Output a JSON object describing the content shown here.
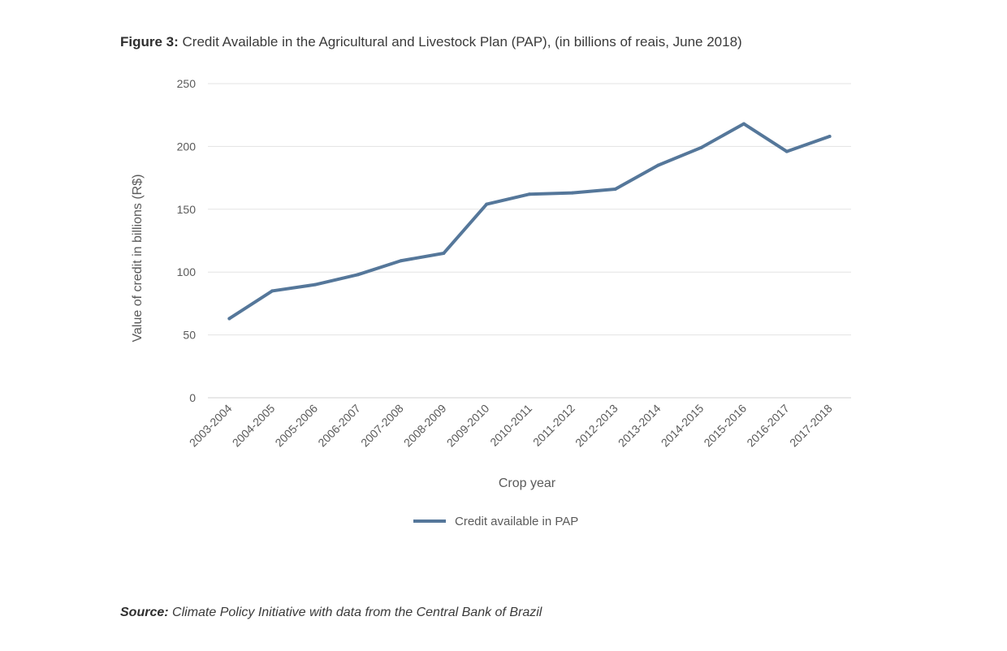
{
  "figure": {
    "label": "Figure 3:",
    "title": "Credit Available in the Agricultural and Livestock Plan (PAP), (in billions of reais, June 2018)"
  },
  "source": {
    "label": "Source:",
    "text": "Climate Policy Initiative with data from the Central Bank of Brazil"
  },
  "chart_data": {
    "type": "line",
    "title": "Credit Available in the Agricultural and Livestock Plan (PAP), (in billions of reais, June 2018)",
    "xlabel": "Crop year",
    "ylabel": "Value of credit in billions (R$)",
    "ylim": [
      0,
      250
    ],
    "yticks": [
      0,
      50,
      100,
      150,
      200,
      250
    ],
    "grid": true,
    "legend_position": "bottom",
    "categories": [
      "2003-2004",
      "2004-2005",
      "2005-2006",
      "2006-2007",
      "2007-2008",
      "2008-2009",
      "2009-2010",
      "2010-2011",
      "2011-2012",
      "2012-2013",
      "2013-2014",
      "2014-2015",
      "2015-2016",
      "2016-2017",
      "2017-2018"
    ],
    "series": [
      {
        "name": "Credit available in PAP",
        "color": "#55779a",
        "values": [
          63,
          85,
          90,
          98,
          109,
          115,
          154,
          162,
          163,
          166,
          185,
          199,
          218,
          196,
          208
        ]
      }
    ]
  }
}
